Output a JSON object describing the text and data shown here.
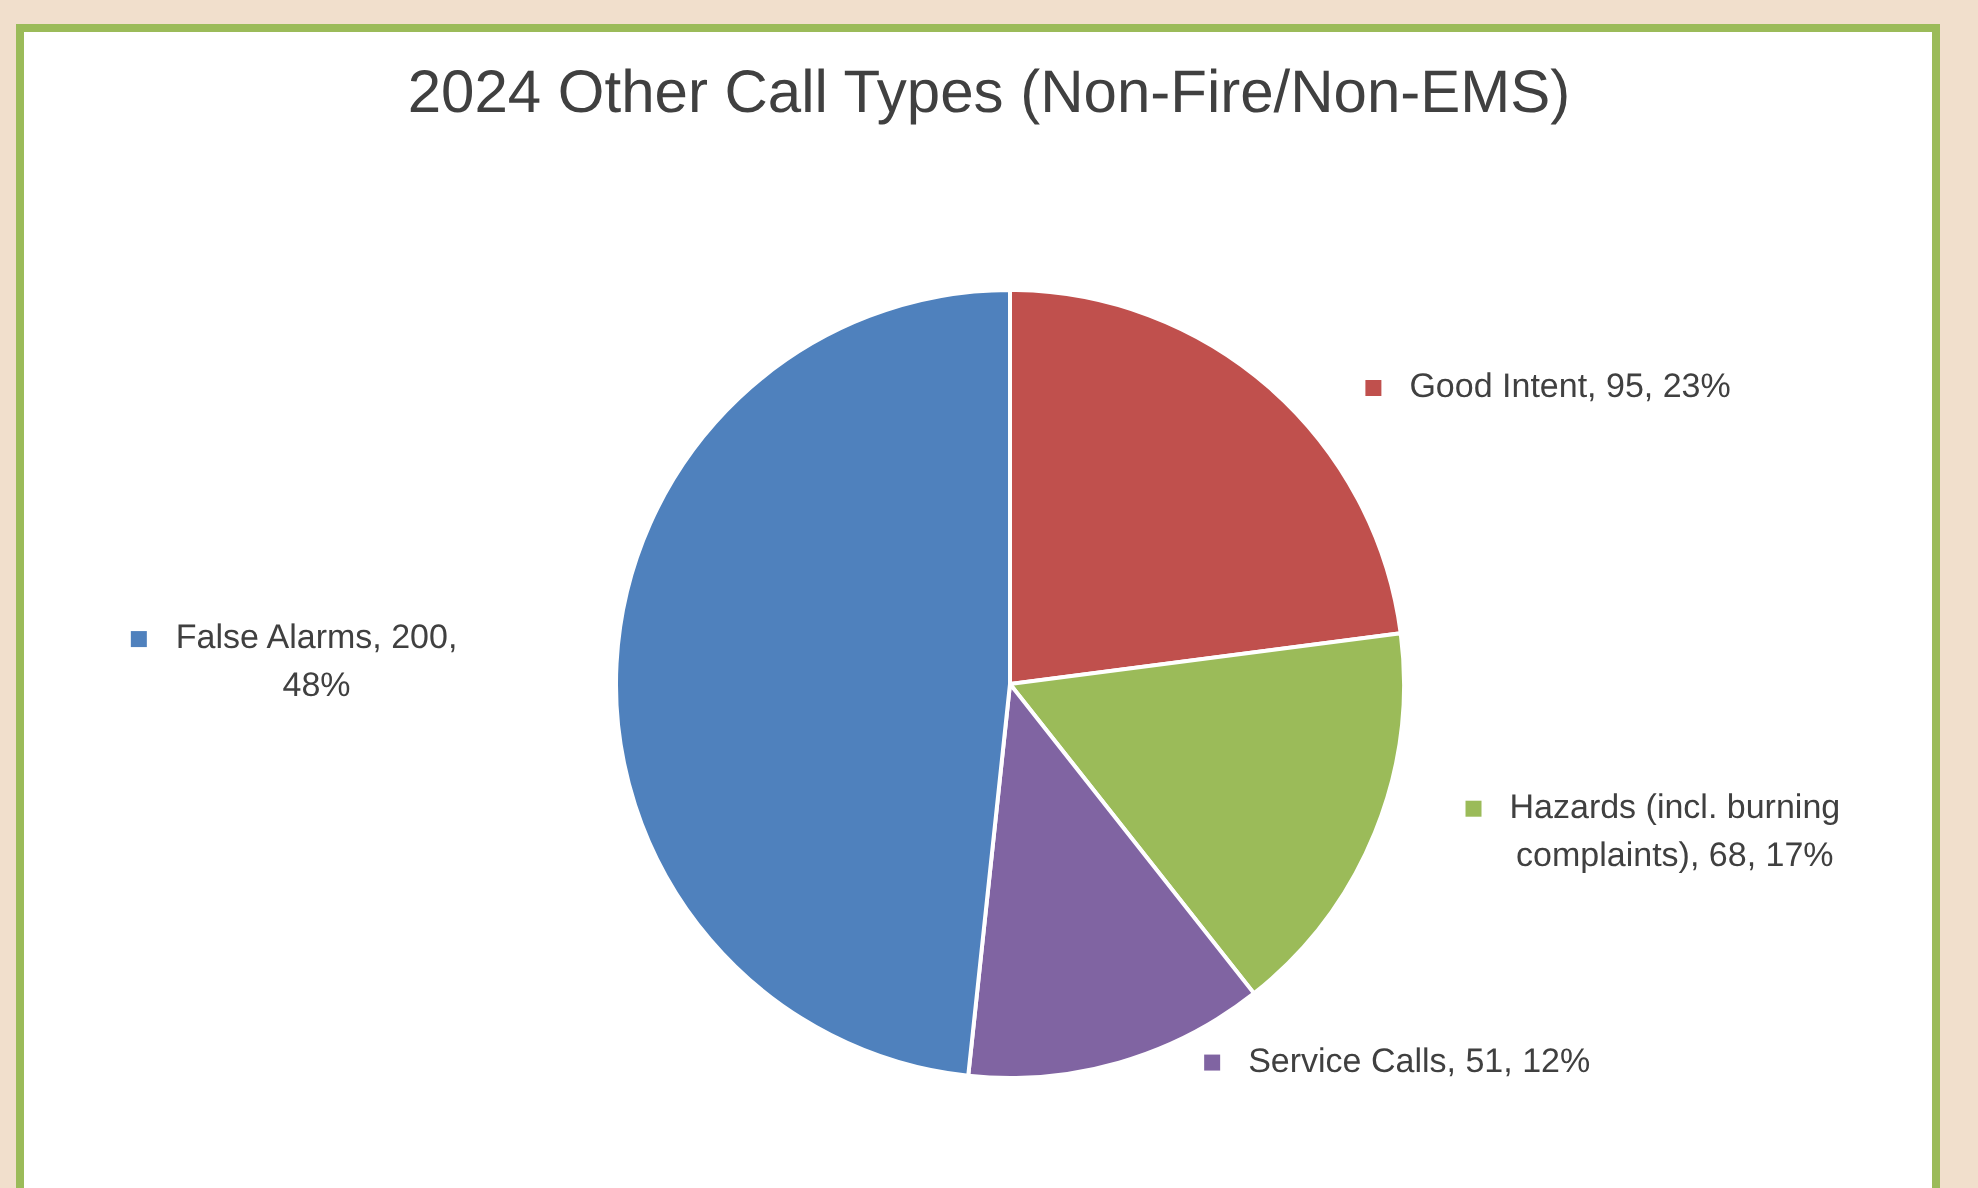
{
  "chart_data": {
    "type": "pie",
    "title": "2024 Other Call Types (Non-Fire/Non-EMS)",
    "categories": [
      "Good Intent",
      "Hazards (incl. burning complaints)",
      "Service Calls",
      "False Alarms"
    ],
    "values": [
      95,
      68,
      51,
      200
    ],
    "colors": [
      "#c0504d",
      "#9bbb59",
      "#8064a2",
      "#4f81bd"
    ],
    "value_labels": [
      "95, 23%",
      "68, 17%",
      "51, 12%",
      "200, 48%"
    ],
    "legend": "right"
  }
}
